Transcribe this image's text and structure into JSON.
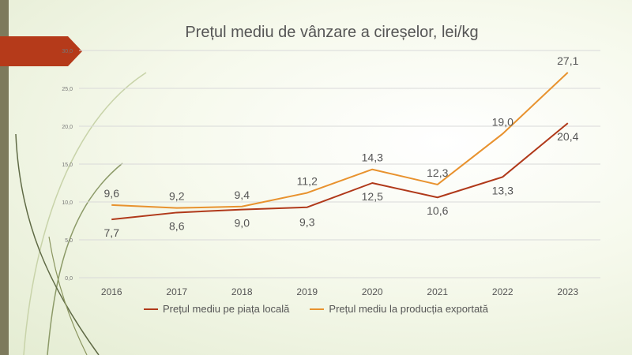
{
  "chart_data": {
    "type": "line",
    "title": "Prețul mediu de vânzare a cireșelor, lei/kg",
    "categories": [
      "2016",
      "2017",
      "2018",
      "2019",
      "2020",
      "2021",
      "2022",
      "2023"
    ],
    "ylim": [
      0,
      30
    ],
    "yticks": [
      "0,0",
      "5,0",
      "10,0",
      "15,0",
      "20,0",
      "25,0",
      "30,0"
    ],
    "grid": true,
    "legend_position": "bottom",
    "series": [
      {
        "name": "Prețul mediu pe piața locală",
        "color": "#b0391a",
        "values": [
          7.7,
          8.6,
          9.0,
          9.3,
          12.5,
          10.6,
          13.3,
          20.4
        ],
        "labels": [
          "7,7",
          "8,6",
          "9,0",
          "9,3",
          "12,5",
          "10,6",
          "13,3",
          "20,4"
        ]
      },
      {
        "name": "Prețul mediu la producția exportată",
        "color": "#e8922e",
        "values": [
          9.6,
          9.2,
          9.4,
          11.2,
          14.3,
          12.3,
          19.0,
          27.1
        ],
        "labels": [
          "9,6",
          "9,2",
          "9,4",
          "11,2",
          "14,3",
          "12,3",
          "19,0",
          "27,1"
        ]
      }
    ]
  },
  "theme": {
    "arrow_color": "#b53a1a",
    "sidebar_color": "#7d7a5c",
    "text_color": "#555555"
  }
}
